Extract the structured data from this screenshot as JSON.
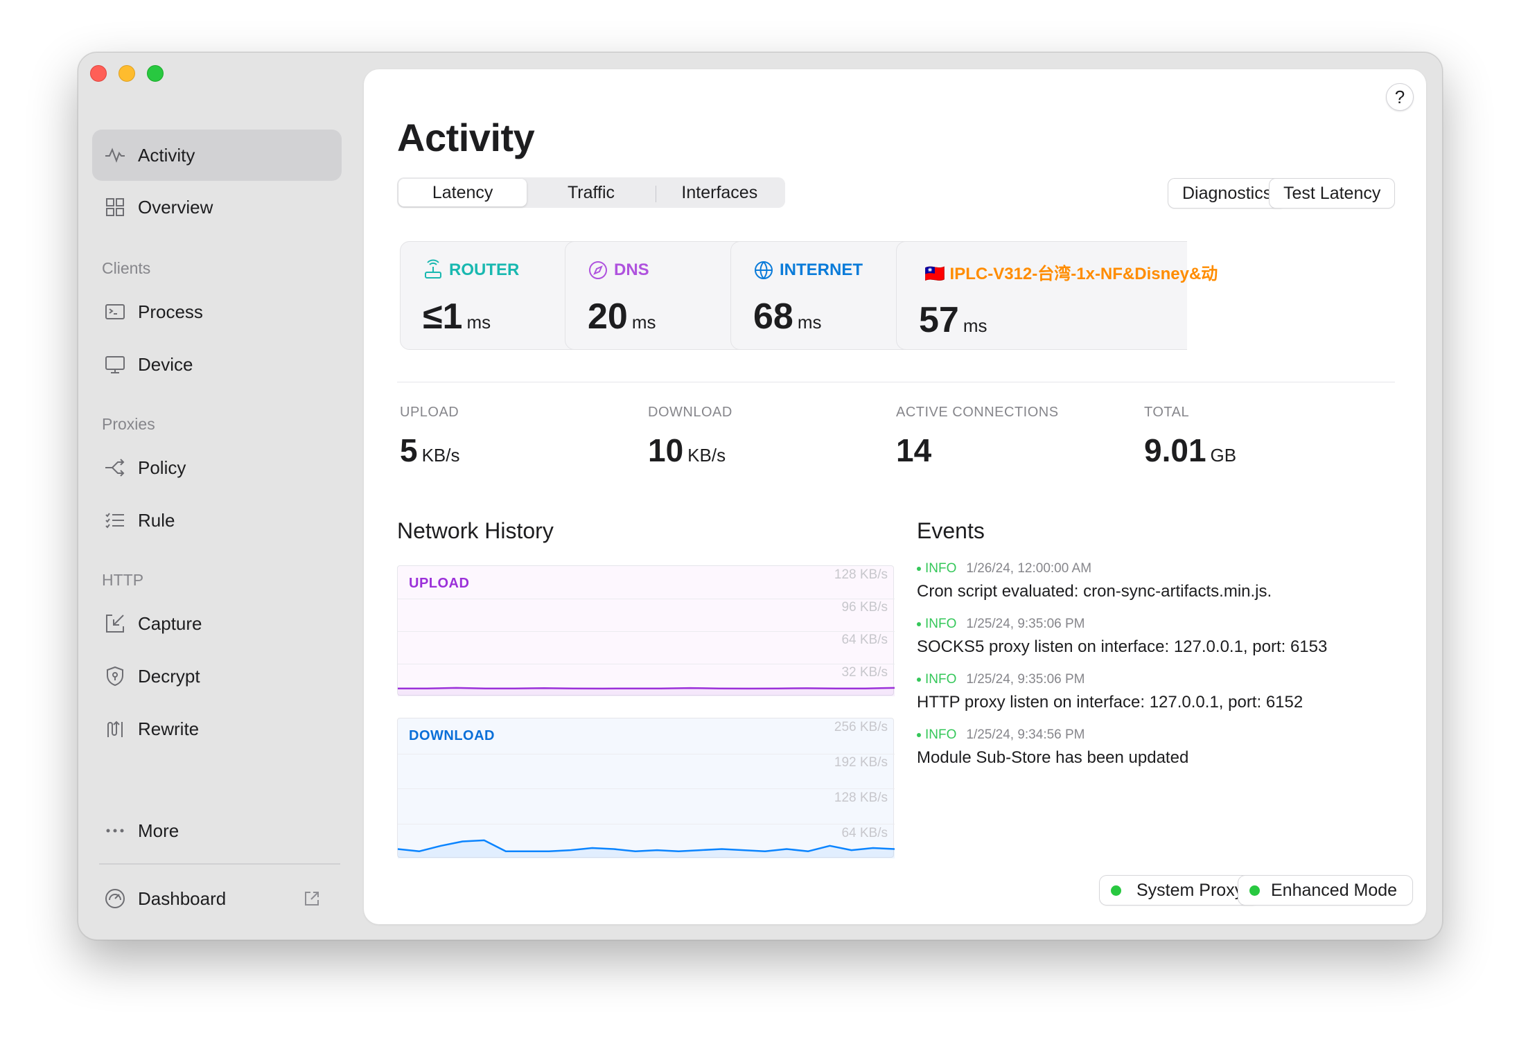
{
  "sidebar": {
    "items": {
      "activity": "Activity",
      "overview": "Overview",
      "process": "Process",
      "device": "Device",
      "policy": "Policy",
      "rule": "Rule",
      "capture": "Capture",
      "decrypt": "Decrypt",
      "rewrite": "Rewrite",
      "more": "More",
      "dashboard": "Dashboard"
    },
    "sections": {
      "clients": "Clients",
      "proxies": "Proxies",
      "http": "HTTP"
    }
  },
  "header": {
    "title": "Activity",
    "help": "?",
    "tabs": [
      "Latency",
      "Traffic",
      "Interfaces"
    ],
    "active_tab": "Latency",
    "diagnostics": "Diagnostics",
    "test_latency": "Test Latency"
  },
  "latency": {
    "router": {
      "label": "ROUTER",
      "value": "≤1",
      "unit": "ms",
      "color": "#19b8b0"
    },
    "dns": {
      "label": "DNS",
      "value": "20",
      "unit": "ms",
      "color": "#af52de"
    },
    "internet": {
      "label": "INTERNET",
      "value": "68",
      "unit": "ms",
      "color": "#0a7bd9"
    },
    "proxy": {
      "label": "🇹🇼 IPLC-V312-台湾-1x-NF&Disney&动",
      "value": "57",
      "unit": "ms",
      "color": "#ff8c00"
    }
  },
  "stats": {
    "upload": {
      "label": "UPLOAD",
      "value": "5",
      "unit": "KB/s"
    },
    "download": {
      "label": "DOWNLOAD",
      "value": "10",
      "unit": "KB/s"
    },
    "connections": {
      "label": "ACTIVE CONNECTIONS",
      "value": "14"
    },
    "total": {
      "label": "TOTAL",
      "value": "9.01",
      "unit": "GB"
    }
  },
  "network_history": {
    "title": "Network History",
    "upload": {
      "label": "UPLOAD",
      "color": "#9b30d9",
      "ticks": [
        "128 KB/s",
        "96 KB/s",
        "64 KB/s",
        "32 KB/s"
      ],
      "max": 128
    },
    "download": {
      "label": "DOWNLOAD",
      "color": "#0a84ff",
      "ticks": [
        "256 KB/s",
        "192 KB/s",
        "128 KB/s",
        "64 KB/s"
      ],
      "max": 256
    }
  },
  "chart_data": [
    {
      "type": "area",
      "title": "UPLOAD",
      "ylim": [
        0,
        128
      ],
      "y_ticks": [
        "128 KB/s",
        "96 KB/s",
        "64 KB/s",
        "32 KB/s"
      ],
      "values": [
        5,
        5,
        5.5,
        5,
        5,
        5.3,
        5,
        4.8,
        5,
        5,
        5.4,
        5,
        4.8,
        5,
        5.2,
        5,
        5,
        5.5
      ]
    },
    {
      "type": "area",
      "title": "DOWNLOAD",
      "ylim": [
        0,
        256
      ],
      "y_ticks": [
        "256 KB/s",
        "192 KB/s",
        "128 KB/s",
        "64 KB/s"
      ],
      "values": [
        12,
        8,
        18,
        26,
        28,
        8,
        8,
        8,
        10,
        14,
        12,
        8,
        10,
        8,
        10,
        12,
        10,
        8,
        12,
        8,
        18,
        10,
        14,
        12
      ]
    }
  ],
  "events": {
    "title": "Events",
    "items": [
      {
        "level": "INFO",
        "time": "1/26/24, 12:00:00 AM",
        "message": "Cron script evaluated: cron-sync-artifacts.min.js."
      },
      {
        "level": "INFO",
        "time": "1/25/24, 9:35:06 PM",
        "message": "SOCKS5 proxy listen on interface: 127.0.0.1, port: 6153"
      },
      {
        "level": "INFO",
        "time": "1/25/24, 9:35:06 PM",
        "message": "HTTP proxy listen on interface: 127.0.0.1, port: 6152"
      },
      {
        "level": "INFO",
        "time": "1/25/24, 9:34:56 PM",
        "message": "Module Sub-Store has been updated"
      }
    ]
  },
  "status": {
    "system_proxy": "System Proxy",
    "enhanced_mode": "Enhanced Mode",
    "on_color": "#28c840"
  }
}
